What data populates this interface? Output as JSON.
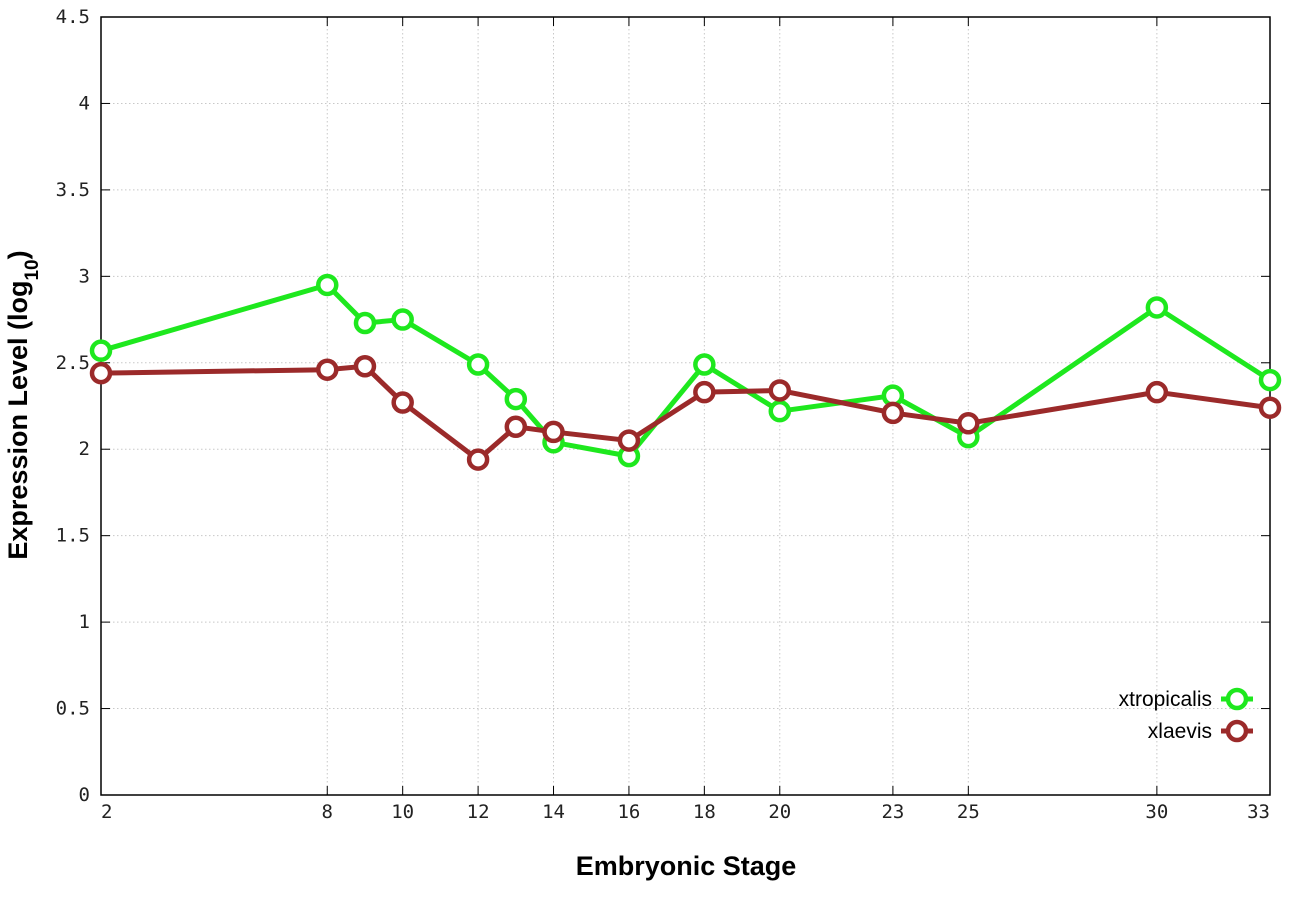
{
  "chart_data": {
    "type": "line",
    "xlabel": "Embryonic Stage",
    "ylabel_main": "Expression Level (log",
    "ylabel_sub": "10",
    "ylabel_close": ")",
    "x_ticks": [
      "2",
      "8",
      "10",
      "12",
      "14",
      "16",
      "18",
      "20",
      "23",
      "25",
      "30",
      "33"
    ],
    "y_ticks": [
      "0",
      "0.5",
      "1",
      "1.5",
      "2",
      "2.5",
      "3",
      "3.5",
      "4",
      "4.5"
    ],
    "ylim": [
      0,
      4.5
    ],
    "grid": true,
    "legend_position": "bottom-right",
    "x": [
      "2",
      "8",
      "9",
      "10",
      "12",
      "13",
      "14",
      "16",
      "18",
      "20",
      "23",
      "25",
      "30",
      "33"
    ],
    "series": [
      {
        "name": "xtropicalis",
        "color": "#1ee81e",
        "values": [
          2.57,
          2.95,
          2.73,
          2.75,
          2.49,
          2.29,
          2.04,
          1.96,
          2.49,
          2.22,
          2.31,
          2.07,
          2.82,
          2.4
        ]
      },
      {
        "name": "xlaevis",
        "color": "#9b2a2a",
        "values": [
          2.44,
          2.46,
          2.48,
          2.27,
          1.94,
          2.13,
          2.1,
          2.05,
          2.33,
          2.34,
          2.21,
          2.15,
          2.33,
          2.24
        ]
      }
    ]
  }
}
